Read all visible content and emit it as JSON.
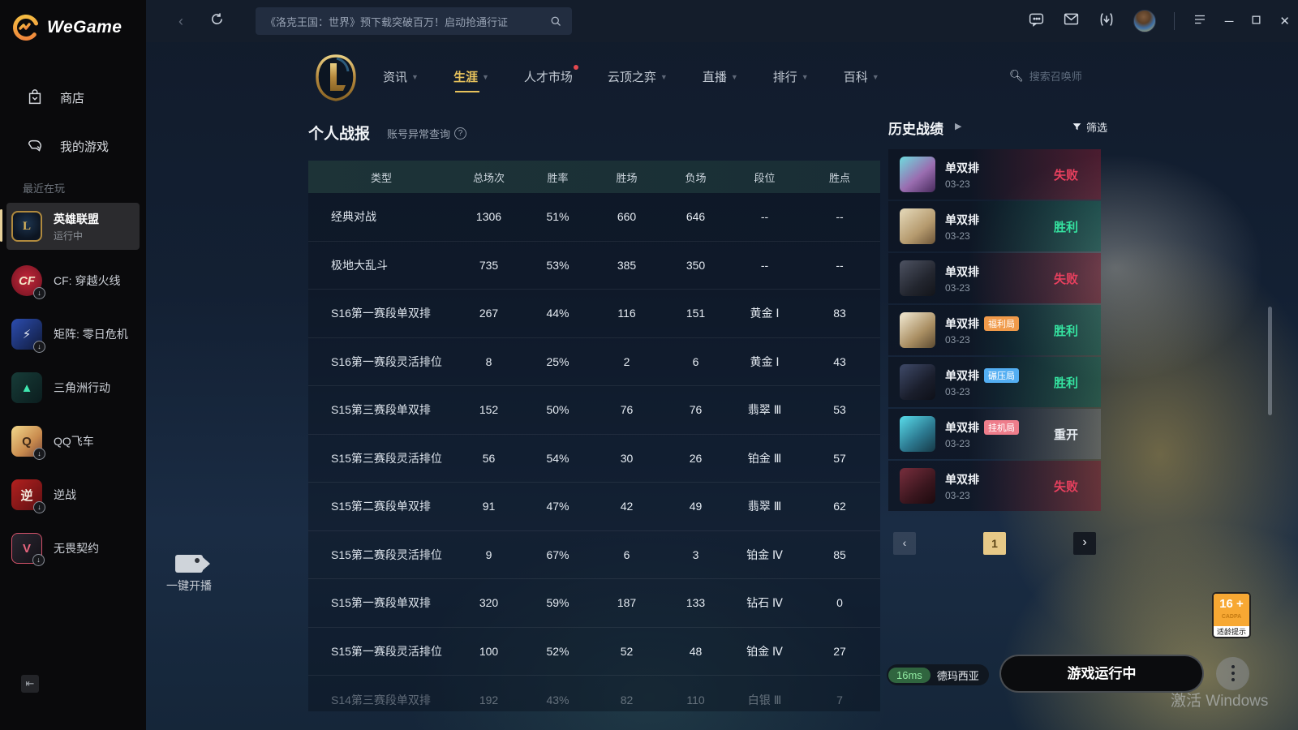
{
  "sidebar": {
    "logo_text": "WeGame",
    "items": [
      {
        "label": "商店"
      },
      {
        "label": "我的游戏"
      }
    ],
    "section_label": "最近在玩",
    "games": [
      {
        "name": "英雄联盟",
        "status": "运行中",
        "selected": true,
        "icon_class": "gi-lol",
        "glyph": "L",
        "download": false
      },
      {
        "name": "CF: 穿越火线",
        "icon_class": "gi-cf",
        "glyph": "CF",
        "download": true
      },
      {
        "name": "矩阵: 零日危机",
        "icon_class": "gi-matrix",
        "glyph": "⚡",
        "download": true
      },
      {
        "name": "三角洲行动",
        "icon_class": "gi-delta",
        "glyph": "▲",
        "download": false
      },
      {
        "name": "QQ飞车",
        "icon_class": "gi-qq",
        "glyph": "Q",
        "download": true
      },
      {
        "name": "逆战",
        "icon_class": "gi-nz",
        "glyph": "逆",
        "download": true
      },
      {
        "name": "无畏契约",
        "icon_class": "gi-val",
        "glyph": "V",
        "download": true
      }
    ],
    "collapse_glyph": "⇤"
  },
  "titlebar": {
    "back_glyph": "‹",
    "search_text": "《洛克王国：世界》预下载突破百万！启动抢通行证"
  },
  "nav": {
    "tabs": [
      {
        "label": "资讯",
        "dropdown": true
      },
      {
        "label": "生涯",
        "dropdown": true,
        "active": true
      },
      {
        "label": "人才市场",
        "dot": true
      },
      {
        "label": "云顶之弈",
        "dropdown": true
      },
      {
        "label": "直播",
        "dropdown": true
      },
      {
        "label": "排行",
        "dropdown": true
      },
      {
        "label": "百科",
        "dropdown": true
      }
    ],
    "search_placeholder": "搜索召唤师"
  },
  "report": {
    "title": "个人战报",
    "link": "账号异常查询",
    "table": {
      "headers": [
        "类型",
        "总场次",
        "胜率",
        "胜场",
        "负场",
        "段位",
        "胜点"
      ],
      "rows": [
        [
          "经典对战",
          "1306",
          "51%",
          "660",
          "646",
          "--",
          "--"
        ],
        [
          "极地大乱斗",
          "735",
          "53%",
          "385",
          "350",
          "--",
          "--"
        ],
        [
          "S16第一赛段单双排",
          "267",
          "44%",
          "116",
          "151",
          "黄金 Ⅰ",
          "83"
        ],
        [
          "S16第一赛段灵活排位",
          "8",
          "25%",
          "2",
          "6",
          "黄金 Ⅰ",
          "43"
        ],
        [
          "S15第三赛段单双排",
          "152",
          "50%",
          "76",
          "76",
          "翡翠 Ⅲ",
          "53"
        ],
        [
          "S15第三赛段灵活排位",
          "56",
          "54%",
          "30",
          "26",
          "铂金 Ⅲ",
          "57"
        ],
        [
          "S15第二赛段单双排",
          "91",
          "47%",
          "42",
          "49",
          "翡翠 Ⅲ",
          "62"
        ],
        [
          "S15第二赛段灵活排位",
          "9",
          "67%",
          "6",
          "3",
          "铂金 Ⅳ",
          "85"
        ],
        [
          "S15第一赛段单双排",
          "320",
          "59%",
          "187",
          "133",
          "钻石 Ⅳ",
          "0"
        ],
        [
          "S15第一赛段灵活排位",
          "100",
          "52%",
          "52",
          "48",
          "铂金 Ⅳ",
          "27"
        ],
        [
          "S14第三赛段单双排",
          "192",
          "43%",
          "82",
          "110",
          "白银 Ⅲ",
          "7"
        ]
      ]
    }
  },
  "history": {
    "title": "历史战绩",
    "filter_label": "筛选",
    "matches": [
      {
        "mode": "单双排",
        "date": "03-23",
        "result": "失败",
        "result_type": "loss",
        "icon": "ch1"
      },
      {
        "mode": "单双排",
        "date": "03-23",
        "result": "胜利",
        "result_type": "win",
        "icon": "ch2"
      },
      {
        "mode": "单双排",
        "date": "03-23",
        "result": "失败",
        "result_type": "loss",
        "icon": "ch3"
      },
      {
        "mode": "单双排",
        "date": "03-23",
        "result": "胜利",
        "result_type": "win",
        "tag": "福利局",
        "tag_color": "orange",
        "icon": "ch4"
      },
      {
        "mode": "单双排",
        "date": "03-23",
        "result": "胜利",
        "result_type": "win",
        "tag": "碾压局",
        "tag_color": "blue",
        "icon": "ch5"
      },
      {
        "mode": "单双排",
        "date": "03-23",
        "result": "重开",
        "result_type": "remake",
        "tag": "挂机局",
        "tag_color": "pink",
        "icon": "ch6"
      },
      {
        "mode": "单双排",
        "date": "03-23",
        "result": "失败",
        "result_type": "loss",
        "icon": "ch7"
      }
    ],
    "pagination": {
      "prev": "‹",
      "current": "1",
      "next": "›"
    }
  },
  "footer": {
    "stream_label": "一键开播",
    "ping": "16ms",
    "server": "德玛西亚",
    "run_button": "游戏运行中",
    "age_badge": {
      "rating": "16 +",
      "org": "CADPA",
      "label": "适龄提示"
    },
    "watermark": "激活 Windows"
  },
  "colors": {
    "accent_gold": "#e8c35c",
    "win": "#35e3a0",
    "loss": "#e8405e",
    "tag_orange": "#f09a4a",
    "tag_blue": "#53aef2",
    "tag_pink": "#ee7d8b",
    "page_active": "#e7c987"
  }
}
